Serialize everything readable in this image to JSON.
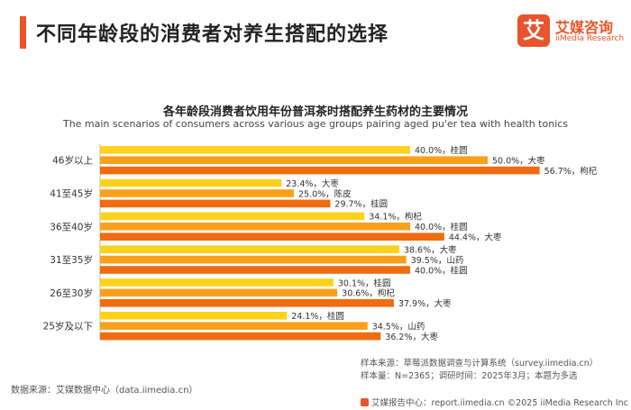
{
  "header": {
    "title": "不同年龄段的消费者对养生搭配的选择"
  },
  "logo": {
    "mark": "艾",
    "name_cn": "艾媒咨询",
    "name_en": "iiMedia Research"
  },
  "colors": {
    "accent": "#e8542b",
    "bar_light": "#fcd21c",
    "bar_mid": "#f9a11b",
    "bar_dark": "#ef6c10"
  },
  "chart_data": {
    "type": "bar",
    "orientation": "horizontal",
    "title": "各年龄段消费者饮用年份普洱茶时搭配养生药材的主要情况",
    "subtitle": "The main scenarios of consumers across various age groups pairing aged pu'er tea with health tonics",
    "xlim": [
      0,
      60
    ],
    "unit": "%",
    "groups": [
      {
        "category": "46岁以上",
        "bars": [
          {
            "value": 40.0,
            "label": "40.0%，桂圆"
          },
          {
            "value": 50.0,
            "label": "50.0%，大枣"
          },
          {
            "value": 56.7,
            "label": "56.7%，枸杞"
          }
        ]
      },
      {
        "category": "41至45岁",
        "bars": [
          {
            "value": 23.4,
            "label": "23.4%，大枣"
          },
          {
            "value": 25.0,
            "label": "25.0%，陈皮"
          },
          {
            "value": 29.7,
            "label": "29.7%，桂圆"
          }
        ]
      },
      {
        "category": "36至40岁",
        "bars": [
          {
            "value": 34.1,
            "label": "34.1%，枸杞"
          },
          {
            "value": 40.0,
            "label": "40.0%，桂圆"
          },
          {
            "value": 44.4,
            "label": "44.4%，大枣"
          }
        ]
      },
      {
        "category": "31至35岁",
        "bars": [
          {
            "value": 38.6,
            "label": "38.6%，大枣"
          },
          {
            "value": 39.5,
            "label": "39.5%，山药"
          },
          {
            "value": 40.0,
            "label": "40.0%，桂圆"
          }
        ]
      },
      {
        "category": "26至30岁",
        "bars": [
          {
            "value": 30.1,
            "label": "30.1%，桂圆"
          },
          {
            "value": 30.6,
            "label": "30.6%，枸杞"
          },
          {
            "value": 37.9,
            "label": "37.9%，大枣"
          }
        ]
      },
      {
        "category": "25岁及以下",
        "bars": [
          {
            "value": 24.1,
            "label": "24.1%，桂圆"
          },
          {
            "value": 34.5,
            "label": "34.5%，山药"
          },
          {
            "value": 36.2,
            "label": "36.2%，大枣"
          }
        ]
      }
    ]
  },
  "footer": {
    "data_source": "数据来源：艾媒数据中心（data.iimedia.cn）",
    "sample_source": "样本来源：草莓派数据调查与计算系统（survey.iimedia.cn）",
    "sample_info": "样本量：N=2365；调研时间：2025年3月；本题为多选",
    "report_center": "艾媒报告中心：report.iimedia.cn  ©2025  iiMedia Research  Inc"
  }
}
